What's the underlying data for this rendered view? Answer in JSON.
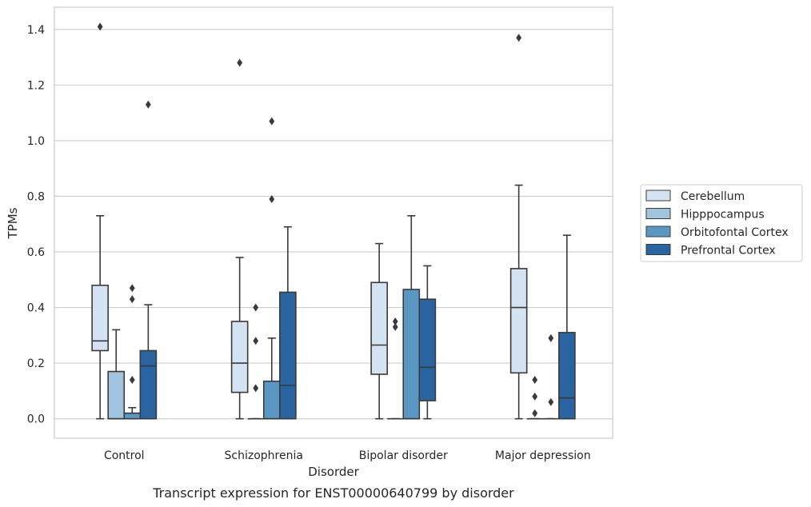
{
  "chart_data": {
    "type": "box",
    "caption": "Transcript expression for ENST00000640799 by disorder",
    "xlabel": "Disorder",
    "ylabel": "TPMs",
    "ylim": [
      -0.07,
      1.48
    ],
    "yticks": [
      0.0,
      0.2,
      0.4,
      0.6,
      0.8,
      1.0,
      1.2,
      1.4
    ],
    "ytick_labels": [
      "0.0",
      "0.2",
      "0.4",
      "0.6",
      "0.8",
      "1.0",
      "1.2",
      "1.4"
    ],
    "grid": "horizontal",
    "legend_position": "right",
    "categories": [
      "Control",
      "Schizophrenia",
      "Bipolar disorder",
      "Major depression"
    ],
    "series": [
      {
        "name": "Cerebellum",
        "color": "#d4e3f1",
        "boxes": [
          {
            "whislo": 0.0,
            "q1": 0.245,
            "med": 0.28,
            "q3": 0.48,
            "whishi": 0.73,
            "fliers": [
              1.41
            ]
          },
          {
            "whislo": 0.0,
            "q1": 0.095,
            "med": 0.2,
            "q3": 0.35,
            "whishi": 0.58,
            "fliers": [
              1.28
            ]
          },
          {
            "whislo": 0.0,
            "q1": 0.16,
            "med": 0.265,
            "q3": 0.49,
            "whishi": 0.63,
            "fliers": []
          },
          {
            "whislo": 0.0,
            "q1": 0.165,
            "med": 0.4,
            "q3": 0.54,
            "whishi": 0.84,
            "fliers": [
              1.37
            ]
          }
        ]
      },
      {
        "name": "Hipppocampus",
        "color": "#a0c4de",
        "boxes": [
          {
            "whislo": 0.0,
            "q1": 0.0,
            "med": 0.0,
            "q3": 0.17,
            "whishi": 0.32,
            "fliers": []
          },
          {
            "whislo": 0.0,
            "q1": 0.0,
            "med": 0.0,
            "q3": 0.0,
            "whishi": 0.0,
            "fliers": [
              0.4,
              0.28,
              0.11
            ]
          },
          {
            "whislo": 0.0,
            "q1": 0.0,
            "med": 0.0,
            "q3": 0.0,
            "whishi": 0.0,
            "fliers": [
              0.35,
              0.33
            ]
          },
          {
            "whislo": 0.0,
            "q1": 0.0,
            "med": 0.0,
            "q3": 0.0,
            "whishi": 0.0,
            "fliers": [
              0.14,
              0.08,
              0.02
            ]
          }
        ]
      },
      {
        "name": "Orbitofontal Cortex",
        "color": "#5b97c3",
        "boxes": [
          {
            "whislo": 0.0,
            "q1": 0.0,
            "med": 0.02,
            "q3": 0.02,
            "whishi": 0.04,
            "fliers": [
              0.47,
              0.43,
              0.14
            ]
          },
          {
            "whislo": 0.0,
            "q1": 0.0,
            "med": 0.0,
            "q3": 0.135,
            "whishi": 0.29,
            "fliers": [
              1.07,
              0.79
            ]
          },
          {
            "whislo": 0.0,
            "q1": 0.0,
            "med": 0.0,
            "q3": 0.465,
            "whishi": 0.73,
            "fliers": []
          },
          {
            "whislo": 0.0,
            "q1": 0.0,
            "med": 0.0,
            "q3": 0.0,
            "whishi": 0.0,
            "fliers": [
              0.29,
              0.06
            ]
          }
        ]
      },
      {
        "name": "Prefrontal Cortex",
        "color": "#2a65a2",
        "boxes": [
          {
            "whislo": 0.0,
            "q1": 0.0,
            "med": 0.19,
            "q3": 0.245,
            "whishi": 0.41,
            "fliers": [
              1.13
            ]
          },
          {
            "whislo": 0.0,
            "q1": 0.0,
            "med": 0.12,
            "q3": 0.455,
            "whishi": 0.69,
            "fliers": []
          },
          {
            "whislo": 0.0,
            "q1": 0.065,
            "med": 0.185,
            "q3": 0.43,
            "whishi": 0.55,
            "fliers": []
          },
          {
            "whislo": 0.0,
            "q1": 0.0,
            "med": 0.075,
            "q3": 0.31,
            "whishi": 0.66,
            "fliers": []
          }
        ]
      }
    ]
  }
}
